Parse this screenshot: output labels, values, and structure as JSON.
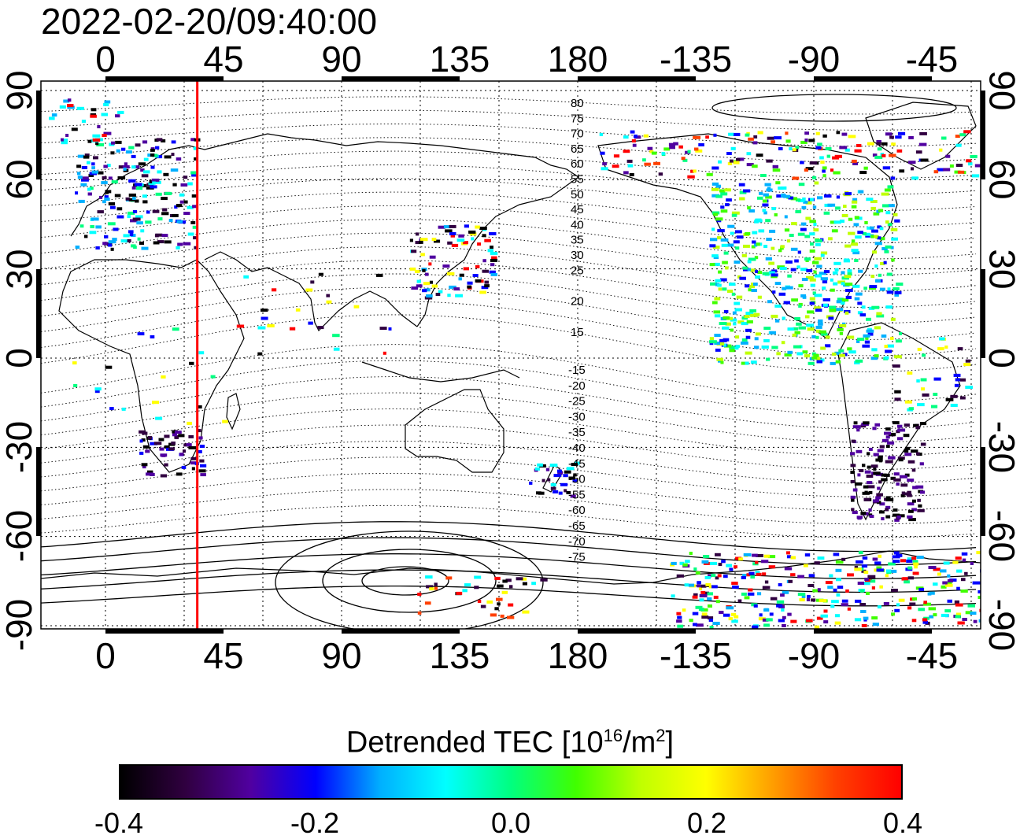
{
  "timestamp": "2022-02-20/09:40:00",
  "map": {
    "top_lon_ticks": [
      "0",
      "45",
      "90",
      "135",
      "180",
      "-135",
      "-90",
      "-45"
    ],
    "bottom_lon_ticks": [
      "0",
      "45",
      "90",
      "135",
      "180",
      "-135",
      "-90",
      "-45"
    ],
    "left_lat_ticks": [
      "90",
      "60",
      "30",
      "0",
      "-30",
      "-60",
      "-90"
    ],
    "right_lat_ticks": [
      "90",
      "60",
      "30",
      "0",
      "-30",
      "-60",
      "-90"
    ],
    "contour_labels_north": [
      "80",
      "75",
      "70",
      "65",
      "60",
      "55",
      "50",
      "45",
      "40",
      "35",
      "30",
      "25",
      "20",
      "15"
    ],
    "contour_labels_south": [
      "-15",
      "-20",
      "-25",
      "-30",
      "-35",
      "-40",
      "-45",
      "-50",
      "-55",
      "-60",
      "-65",
      "-70",
      "-75"
    ],
    "marker_longitude": 35,
    "marker_color": "#ff0000"
  },
  "colorbar": {
    "title_prefix": "Detrended TEC  [10",
    "title_exp": "16",
    "title_mid": "/m",
    "title_exp2": "2",
    "title_suffix": "]",
    "ticks": [
      "-0.4",
      "-0.2",
      "0.0",
      "0.2",
      "0.4"
    ],
    "stops": [
      "#000000",
      "#300040",
      "#5000a0",
      "#0000ff",
      "#00b0ff",
      "#00ffff",
      "#00ff80",
      "#40ff00",
      "#c0ff00",
      "#ffff00",
      "#ffa000",
      "#ff4000",
      "#ff0000"
    ]
  }
}
